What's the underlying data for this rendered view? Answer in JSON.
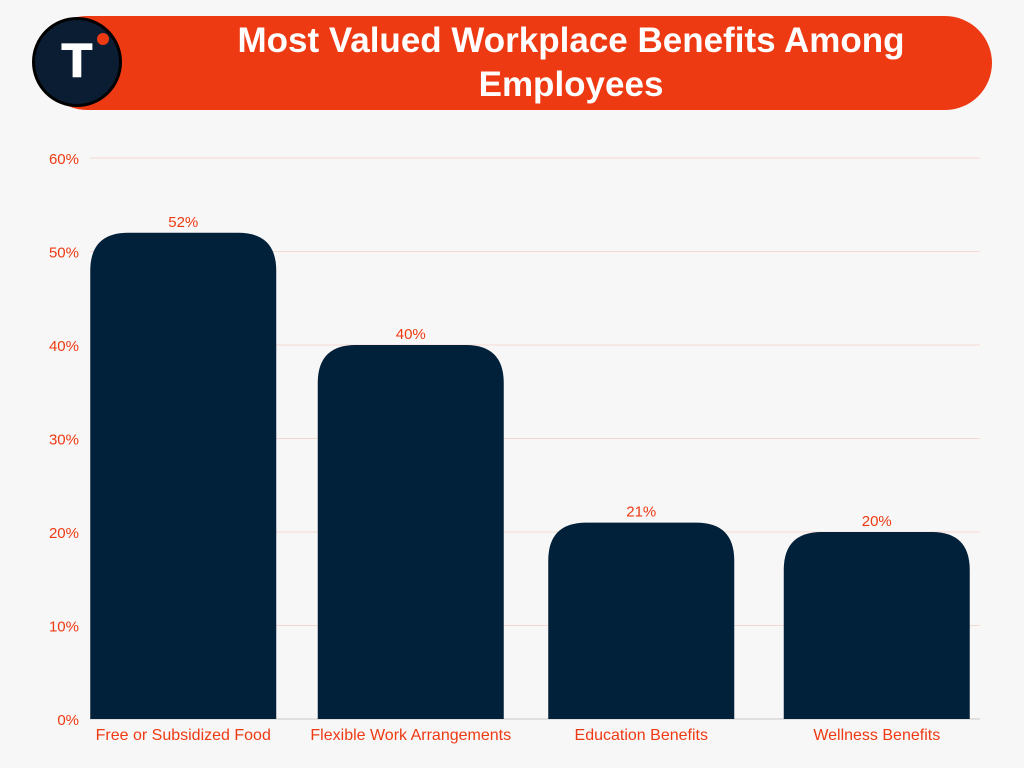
{
  "brand": {
    "logo_letter": "T",
    "colors": {
      "accent": "#ee3a12",
      "bar": "#012039",
      "logo_bg": "#0b1d33",
      "background": "#f8f7f8"
    }
  },
  "chart_data": {
    "type": "bar",
    "title": "Most Valued Workplace Benefits Among Employees",
    "categories": [
      "Free or Subsidized Food",
      "Flexible Work Arrangements",
      "Education Benefits",
      "Wellness Benefits"
    ],
    "values": [
      52,
      40,
      21,
      20
    ],
    "data_labels": [
      "52%",
      "40%",
      "21%",
      "20%"
    ],
    "y_ticks": [
      0,
      10,
      20,
      30,
      40,
      50,
      60
    ],
    "y_tick_labels": [
      "0%",
      "10%",
      "20%",
      "30%",
      "40%",
      "50%",
      "60%"
    ],
    "ylim": [
      0,
      60
    ],
    "xlabel": "",
    "ylabel": "",
    "grid": true,
    "legend": "none"
  }
}
